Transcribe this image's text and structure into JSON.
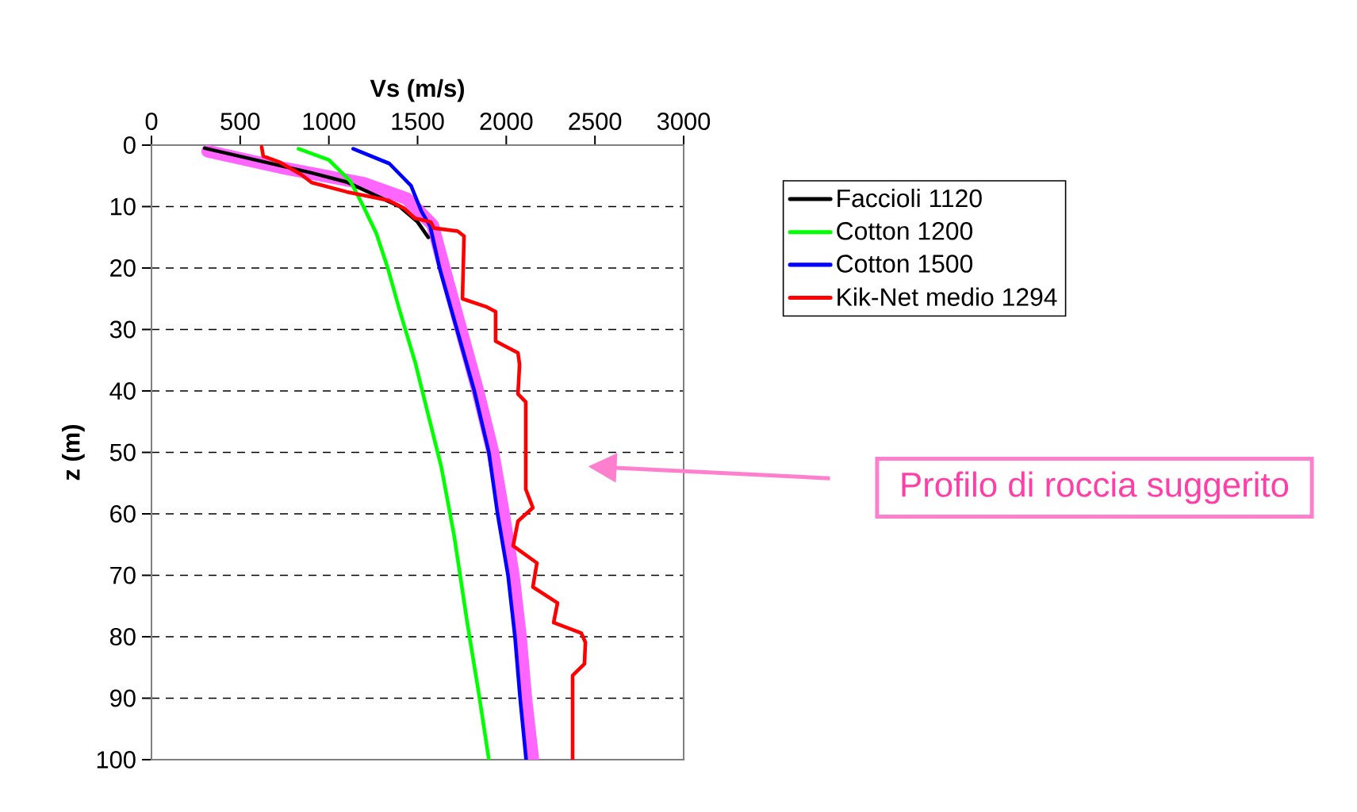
{
  "chart_data": {
    "type": "line",
    "xlabel": "Vs (m/s)",
    "ylabel": "z (m)",
    "xlim": [
      0,
      3000
    ],
    "ylim": [
      100,
      0
    ],
    "xticks": [
      0,
      500,
      1000,
      1500,
      2000,
      2500,
      3000
    ],
    "yticks": [
      0,
      10,
      20,
      30,
      40,
      50,
      60,
      70,
      80,
      90,
      100
    ],
    "grid": "y",
    "legend": "right",
    "annotations": [
      "Profilo di roccia suggerito"
    ],
    "series": [
      {
        "color": "#ff66ff",
        "x": [
          317,
          756,
          1195,
          1439,
          1585,
          1650,
          1745,
          1840,
          1925,
          1985,
          2040,
          2080,
          2110,
          2150
        ],
        "values": [
          1,
          3.8,
          6.2,
          8.7,
          13,
          20,
          30,
          40,
          50,
          60,
          70,
          80,
          90,
          100
        ]
      },
      {
        "name": "Faccioli 1120",
        "color": "#000000",
        "x": [
          300,
          600,
          900,
          1100,
          1250,
          1400,
          1500,
          1560
        ],
        "values": [
          0.5,
          2.5,
          4.5,
          6,
          8,
          10,
          12.5,
          15
        ]
      },
      {
        "name": "Cotton 1200",
        "color": "#00ff00",
        "x": [
          829,
          1000,
          1122,
          1195,
          1268,
          1332,
          1400,
          1488,
          1561,
          1634,
          1707,
          1780,
          1844,
          1902
        ],
        "values": [
          0.6,
          2.4,
          5.9,
          10,
          14.4,
          20,
          27,
          35.5,
          44,
          52.4,
          63.7,
          77.7,
          89,
          100
        ]
      },
      {
        "name": "Cotton 1500",
        "color": "#0000ff",
        "x": [
          1137,
          1341,
          1463,
          1522,
          1571,
          1624,
          1722,
          1820,
          1902,
          1951,
          2010,
          2049,
          2078,
          2112
        ],
        "values": [
          0.6,
          3,
          6.6,
          10.8,
          13.2,
          20,
          30,
          40,
          50,
          60,
          70,
          80,
          90,
          100
        ]
      },
      {
        "name": "Kik-Net medio 1294",
        "color": "#ff0000",
        "x": [
          621,
          630,
          724,
          845,
          903,
          1100,
          1337,
          1426,
          1485,
          1574,
          1592,
          1726,
          1762,
          1753,
          1887,
          1940,
          1940,
          2066,
          2075,
          2066,
          2110,
          2110,
          2150,
          2066,
          2039,
          2173,
          2150,
          2289,
          2267,
          2423,
          2446,
          2441,
          2374,
          2374
        ],
        "values": [
          0.3,
          1.8,
          2.8,
          4.8,
          6.1,
          7.6,
          9,
          10.3,
          11.9,
          12.5,
          13.5,
          14,
          14.8,
          25,
          26.3,
          27.1,
          31.9,
          33.8,
          35.7,
          40.5,
          41.8,
          56,
          59,
          61.2,
          65.2,
          68,
          71.9,
          74.5,
          77.7,
          79.4,
          80.9,
          84.4,
          86.3,
          100
        ]
      }
    ]
  }
}
